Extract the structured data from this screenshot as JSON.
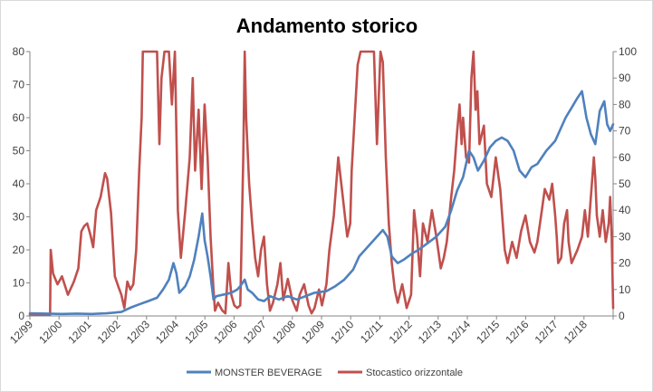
{
  "chart_data": {
    "type": "line",
    "title": "Andamento storico",
    "x_ticks": [
      "12/99",
      "12/00",
      "12/01",
      "12/02",
      "12/03",
      "12/04",
      "12/05",
      "12/06",
      "12/07",
      "12/08",
      "12/09",
      "12/10",
      "12/11",
      "12/12",
      "12/13",
      "12/14",
      "12/15",
      "12/16",
      "12/17",
      "12/18"
    ],
    "x_start": 1999.92,
    "x_end": 2019.55,
    "y_left": {
      "min": 0,
      "max": 80,
      "ticks": [
        0,
        10,
        20,
        30,
        40,
        50,
        60,
        70,
        80
      ]
    },
    "y_right": {
      "min": 0,
      "max": 100,
      "ticks": [
        0,
        10,
        20,
        30,
        40,
        50,
        60,
        70,
        80,
        90,
        100
      ]
    },
    "grid": false,
    "legend_position": "bottom",
    "colors": {
      "monster": "#4f81bd",
      "stocastico": "#c0504d"
    },
    "series": [
      {
        "name": "MONSTER BEVERAGE",
        "axis": "left",
        "points": [
          [
            1999.92,
            0.8
          ],
          [
            2000.5,
            0.7
          ],
          [
            2001.0,
            0.6
          ],
          [
            2001.5,
            0.7
          ],
          [
            2002.0,
            0.6
          ],
          [
            2002.5,
            0.8
          ],
          [
            2003.0,
            1.2
          ],
          [
            2003.3,
            2.5
          ],
          [
            2003.6,
            3.5
          ],
          [
            2003.9,
            4.5
          ],
          [
            2004.2,
            5.5
          ],
          [
            2004.4,
            8
          ],
          [
            2004.6,
            11
          ],
          [
            2004.75,
            16
          ],
          [
            2004.85,
            13
          ],
          [
            2004.95,
            7
          ],
          [
            2005.15,
            9
          ],
          [
            2005.3,
            12
          ],
          [
            2005.45,
            17
          ],
          [
            2005.6,
            24
          ],
          [
            2005.72,
            31
          ],
          [
            2005.8,
            23
          ],
          [
            2005.9,
            18
          ],
          [
            2006.0,
            12
          ],
          [
            2006.1,
            5
          ],
          [
            2006.2,
            6
          ],
          [
            2006.45,
            6.5
          ],
          [
            2006.7,
            7
          ],
          [
            2006.9,
            8
          ],
          [
            2007.0,
            9
          ],
          [
            2007.15,
            11
          ],
          [
            2007.25,
            8
          ],
          [
            2007.4,
            7
          ],
          [
            2007.6,
            5
          ],
          [
            2007.8,
            4.5
          ],
          [
            2008.0,
            6
          ],
          [
            2008.3,
            5
          ],
          [
            2008.6,
            6
          ],
          [
            2008.9,
            5
          ],
          [
            2009.2,
            6
          ],
          [
            2009.5,
            7
          ],
          [
            2009.9,
            7.5
          ],
          [
            2010.2,
            9
          ],
          [
            2010.5,
            11
          ],
          [
            2010.8,
            14
          ],
          [
            2011.0,
            18
          ],
          [
            2011.3,
            21
          ],
          [
            2011.6,
            24
          ],
          [
            2011.8,
            26
          ],
          [
            2011.95,
            24
          ],
          [
            2012.1,
            18
          ],
          [
            2012.3,
            16
          ],
          [
            2012.5,
            17
          ],
          [
            2012.8,
            19
          ],
          [
            2013.0,
            20
          ],
          [
            2013.3,
            22
          ],
          [
            2013.6,
            24
          ],
          [
            2013.9,
            27
          ],
          [
            2014.1,
            32
          ],
          [
            2014.3,
            38
          ],
          [
            2014.5,
            42
          ],
          [
            2014.7,
            50
          ],
          [
            2014.85,
            48
          ],
          [
            2015.0,
            44
          ],
          [
            2015.2,
            47
          ],
          [
            2015.4,
            51
          ],
          [
            2015.6,
            53
          ],
          [
            2015.8,
            54
          ],
          [
            2016.0,
            53
          ],
          [
            2016.2,
            50
          ],
          [
            2016.4,
            44
          ],
          [
            2016.6,
            42
          ],
          [
            2016.8,
            45
          ],
          [
            2017.0,
            46
          ],
          [
            2017.3,
            50
          ],
          [
            2017.6,
            53
          ],
          [
            2017.8,
            57
          ],
          [
            2017.95,
            60
          ],
          [
            2018.15,
            63
          ],
          [
            2018.35,
            66
          ],
          [
            2018.5,
            68
          ],
          [
            2018.65,
            60
          ],
          [
            2018.8,
            55
          ],
          [
            2018.95,
            52
          ],
          [
            2019.1,
            62
          ],
          [
            2019.25,
            65
          ],
          [
            2019.35,
            58
          ],
          [
            2019.45,
            56
          ],
          [
            2019.55,
            58
          ]
        ]
      },
      {
        "name": "Stocastico orizzontale",
        "axis": "right",
        "points": [
          [
            1999.92,
            0.5
          ],
          [
            2000.6,
            0.5
          ],
          [
            2000.62,
            25
          ],
          [
            2000.7,
            16
          ],
          [
            2000.85,
            12
          ],
          [
            2001.0,
            15
          ],
          [
            2001.2,
            8
          ],
          [
            2001.4,
            13
          ],
          [
            2001.55,
            18
          ],
          [
            2001.65,
            32
          ],
          [
            2001.75,
            34
          ],
          [
            2001.85,
            35
          ],
          [
            2001.95,
            31
          ],
          [
            2002.05,
            26
          ],
          [
            2002.15,
            40
          ],
          [
            2002.3,
            45
          ],
          [
            2002.45,
            54
          ],
          [
            2002.52,
            52
          ],
          [
            2002.65,
            39
          ],
          [
            2002.78,
            15
          ],
          [
            2002.9,
            11
          ],
          [
            2003.0,
            8
          ],
          [
            2003.1,
            3
          ],
          [
            2003.2,
            13
          ],
          [
            2003.3,
            10
          ],
          [
            2003.4,
            12
          ],
          [
            2003.5,
            25
          ],
          [
            2003.6,
            55
          ],
          [
            2003.68,
            75
          ],
          [
            2003.72,
            100
          ],
          [
            2004.2,
            100
          ],
          [
            2004.28,
            65
          ],
          [
            2004.35,
            90
          ],
          [
            2004.45,
            100
          ],
          [
            2004.6,
            100
          ],
          [
            2004.7,
            80
          ],
          [
            2004.8,
            100
          ],
          [
            2004.9,
            40
          ],
          [
            2005.0,
            22
          ],
          [
            2005.15,
            40
          ],
          [
            2005.3,
            60
          ],
          [
            2005.4,
            90
          ],
          [
            2005.48,
            55
          ],
          [
            2005.6,
            78
          ],
          [
            2005.7,
            48
          ],
          [
            2005.8,
            80
          ],
          [
            2005.9,
            60
          ],
          [
            2006.0,
            30
          ],
          [
            2006.1,
            10
          ],
          [
            2006.15,
            2
          ],
          [
            2006.25,
            5
          ],
          [
            2006.4,
            2
          ],
          [
            2006.5,
            1
          ],
          [
            2006.6,
            20
          ],
          [
            2006.7,
            8
          ],
          [
            2006.8,
            4
          ],
          [
            2006.9,
            3
          ],
          [
            2007.0,
            4
          ],
          [
            2007.1,
            60
          ],
          [
            2007.15,
            100
          ],
          [
            2007.2,
            75
          ],
          [
            2007.3,
            50
          ],
          [
            2007.4,
            35
          ],
          [
            2007.5,
            22
          ],
          [
            2007.6,
            15
          ],
          [
            2007.7,
            25
          ],
          [
            2007.8,
            30
          ],
          [
            2007.9,
            12
          ],
          [
            2008.0,
            2
          ],
          [
            2008.1,
            5
          ],
          [
            2008.25,
            12
          ],
          [
            2008.35,
            20
          ],
          [
            2008.45,
            6
          ],
          [
            2008.6,
            14
          ],
          [
            2008.75,
            6
          ],
          [
            2008.9,
            2
          ],
          [
            2009.0,
            8
          ],
          [
            2009.15,
            12
          ],
          [
            2009.3,
            4
          ],
          [
            2009.4,
            1
          ],
          [
            2009.5,
            3
          ],
          [
            2009.65,
            10
          ],
          [
            2009.75,
            4
          ],
          [
            2009.9,
            12
          ],
          [
            2010.0,
            25
          ],
          [
            2010.15,
            38
          ],
          [
            2010.3,
            60
          ],
          [
            2010.45,
            45
          ],
          [
            2010.6,
            30
          ],
          [
            2010.7,
            35
          ],
          [
            2010.75,
            55
          ],
          [
            2010.85,
            75
          ],
          [
            2010.95,
            95
          ],
          [
            2011.05,
            100
          ],
          [
            2011.5,
            100
          ],
          [
            2011.6,
            65
          ],
          [
            2011.72,
            100
          ],
          [
            2011.8,
            96
          ],
          [
            2011.9,
            60
          ],
          [
            2012.0,
            35
          ],
          [
            2012.1,
            20
          ],
          [
            2012.2,
            10
          ],
          [
            2012.3,
            5
          ],
          [
            2012.45,
            12
          ],
          [
            2012.6,
            3
          ],
          [
            2012.75,
            8
          ],
          [
            2012.85,
            40
          ],
          [
            2012.95,
            30
          ],
          [
            2013.05,
            15
          ],
          [
            2013.15,
            35
          ],
          [
            2013.3,
            28
          ],
          [
            2013.45,
            40
          ],
          [
            2013.6,
            30
          ],
          [
            2013.75,
            18
          ],
          [
            2013.85,
            22
          ],
          [
            2013.95,
            28
          ],
          [
            2014.1,
            45
          ],
          [
            2014.2,
            55
          ],
          [
            2014.3,
            70
          ],
          [
            2014.38,
            80
          ],
          [
            2014.45,
            65
          ],
          [
            2014.5,
            75
          ],
          [
            2014.6,
            60
          ],
          [
            2014.7,
            58
          ],
          [
            2014.78,
            90
          ],
          [
            2014.85,
            100
          ],
          [
            2014.92,
            78
          ],
          [
            2014.98,
            85
          ],
          [
            2015.05,
            65
          ],
          [
            2015.2,
            72
          ],
          [
            2015.3,
            50
          ],
          [
            2015.45,
            45
          ],
          [
            2015.6,
            60
          ],
          [
            2015.75,
            48
          ],
          [
            2015.9,
            25
          ],
          [
            2016.0,
            20
          ],
          [
            2016.15,
            28
          ],
          [
            2016.3,
            22
          ],
          [
            2016.45,
            32
          ],
          [
            2016.6,
            38
          ],
          [
            2016.75,
            28
          ],
          [
            2016.9,
            24
          ],
          [
            2017.0,
            28
          ],
          [
            2017.15,
            40
          ],
          [
            2017.25,
            48
          ],
          [
            2017.4,
            44
          ],
          [
            2017.5,
            50
          ],
          [
            2017.6,
            38
          ],
          [
            2017.65,
            30
          ],
          [
            2017.7,
            20
          ],
          [
            2017.8,
            22
          ],
          [
            2017.9,
            35
          ],
          [
            2018.0,
            40
          ],
          [
            2018.05,
            28
          ],
          [
            2018.15,
            20
          ],
          [
            2018.35,
            25
          ],
          [
            2018.5,
            30
          ],
          [
            2018.6,
            40
          ],
          [
            2018.7,
            30
          ],
          [
            2018.8,
            45
          ],
          [
            2018.9,
            60
          ],
          [
            2018.95,
            52
          ],
          [
            2019.0,
            38
          ],
          [
            2019.1,
            30
          ],
          [
            2019.2,
            40
          ],
          [
            2019.3,
            28
          ],
          [
            2019.4,
            35
          ],
          [
            2019.45,
            45
          ],
          [
            2019.5,
            30
          ],
          [
            2019.52,
            20
          ],
          [
            2019.55,
            3
          ]
        ]
      }
    ]
  }
}
